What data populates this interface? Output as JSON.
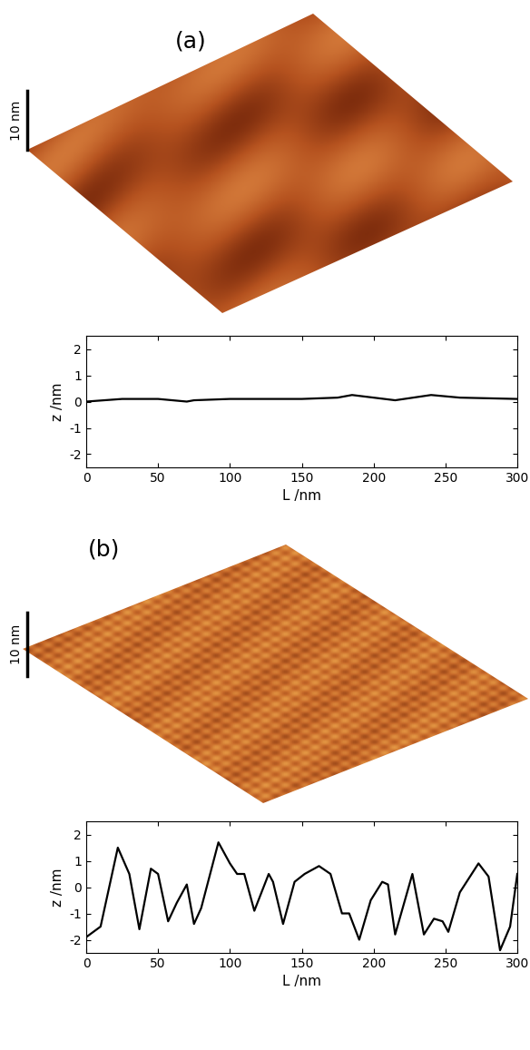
{
  "chart_data": [
    {
      "type": "line",
      "title": "(a)",
      "annotations": [
        "10 nm"
      ],
      "x_label": "L /nm",
      "y_label": "z /nm",
      "color": "#000000",
      "x": [
        0,
        25,
        50,
        70,
        75,
        100,
        150,
        175,
        185,
        200,
        215,
        240,
        260,
        300
      ],
      "values": [
        0.0,
        0.1,
        0.1,
        0.0,
        0.05,
        0.1,
        0.1,
        0.15,
        0.25,
        0.15,
        0.05,
        0.25,
        0.15,
        0.1
      ],
      "xlim": [
        0,
        300
      ],
      "xticks": [
        0,
        50,
        100,
        150,
        200,
        250,
        300
      ],
      "ylim": [
        -2.5,
        2.5
      ],
      "yticks": [
        -2,
        -1,
        0,
        1,
        2
      ],
      "grid": false
    },
    {
      "type": "line",
      "title": "(b)",
      "annotations": [
        "10 nm"
      ],
      "x_label": "L /nm",
      "y_label": "z /nm",
      "color": "#000000",
      "x": [
        0,
        10,
        22,
        30,
        37,
        45,
        50,
        57,
        63,
        70,
        75,
        80,
        92,
        100,
        105,
        110,
        117,
        127,
        130,
        137,
        145,
        152,
        162,
        170,
        178,
        183,
        190,
        198,
        206,
        210,
        215,
        227,
        235,
        242,
        248,
        252,
        260,
        273,
        280,
        288,
        295,
        300
      ],
      "values": [
        -1.9,
        -1.5,
        1.5,
        0.5,
        -1.6,
        0.7,
        0.5,
        -1.3,
        -0.6,
        0.1,
        -1.4,
        -0.8,
        1.7,
        0.9,
        0.5,
        0.5,
        -0.9,
        0.5,
        0.2,
        -1.4,
        0.2,
        0.5,
        0.8,
        0.5,
        -1.0,
        -1.0,
        -2.0,
        -0.5,
        0.2,
        0.1,
        -1.8,
        0.5,
        -1.8,
        -1.2,
        -1.3,
        -1.7,
        -0.2,
        0.9,
        0.4,
        -2.4,
        -1.5,
        0.5
      ],
      "xlim": [
        0,
        300
      ],
      "xticks": [
        0,
        50,
        100,
        150,
        200,
        250,
        300
      ],
      "ylim": [
        -2.5,
        2.5
      ],
      "yticks": [
        -2,
        -1,
        0,
        1,
        2
      ],
      "grid": false
    }
  ]
}
